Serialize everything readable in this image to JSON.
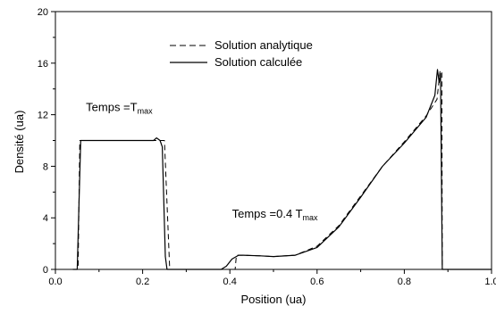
{
  "chart_data": {
    "type": "line",
    "xlabel": "Position (ua)",
    "ylabel": "Densité (ua)",
    "xlim": [
      0.0,
      1.0
    ],
    "ylim": [
      0,
      20
    ],
    "x_ticks": [
      "0.0",
      "0.2",
      "0.4",
      "0.6",
      "0.8",
      "1.0"
    ],
    "y_ticks": [
      "0",
      "4",
      "8",
      "12",
      "16",
      "20"
    ],
    "grid": false,
    "legend_position": "top-center",
    "annotations": [
      {
        "base": "Temps =T",
        "sub": "max",
        "x": 0.07,
        "y": 12.3
      },
      {
        "base": "Temps =0.4 T",
        "sub": "max",
        "x": 0.405,
        "y": 4.0
      }
    ],
    "series": [
      {
        "name": "Solution analytique",
        "style": "dashed",
        "x": [
          0.04,
          0.052,
          0.056,
          0.1,
          0.15,
          0.2,
          0.245,
          0.25,
          0.262,
          0.38,
          0.398,
          0.412,
          0.415,
          0.43,
          0.47,
          0.5,
          0.55,
          0.6,
          0.65,
          0.7,
          0.75,
          0.8,
          0.85,
          0.875,
          0.882,
          0.886,
          0.887,
          1.0
        ],
        "y": [
          0,
          0,
          10,
          10,
          10,
          10,
          10,
          10,
          0,
          0,
          0,
          0,
          1.1,
          1.1,
          1.05,
          1.0,
          1.1,
          1.8,
          3.4,
          5.7,
          8.0,
          9.9,
          11.9,
          13.2,
          15.4,
          15.4,
          0,
          0
        ]
      },
      {
        "name": "Solution calculée",
        "style": "solid",
        "x": [
          0.04,
          0.05,
          0.058,
          0.065,
          0.1,
          0.15,
          0.2,
          0.225,
          0.232,
          0.24,
          0.245,
          0.252,
          0.256,
          0.38,
          0.392,
          0.405,
          0.42,
          0.43,
          0.47,
          0.5,
          0.55,
          0.6,
          0.65,
          0.7,
          0.75,
          0.8,
          0.85,
          0.87,
          0.876,
          0.88,
          0.883,
          0.887,
          1.0
        ],
        "y": [
          0,
          0,
          10.0,
          10.0,
          10.0,
          10.0,
          10.0,
          10.0,
          10.2,
          10.0,
          9.5,
          1.0,
          0,
          0,
          0.25,
          0.8,
          1.1,
          1.1,
          1.05,
          1.0,
          1.1,
          1.7,
          3.3,
          5.6,
          8.0,
          9.8,
          11.8,
          13.5,
          15.5,
          14.5,
          15.2,
          0,
          0
        ]
      }
    ]
  }
}
